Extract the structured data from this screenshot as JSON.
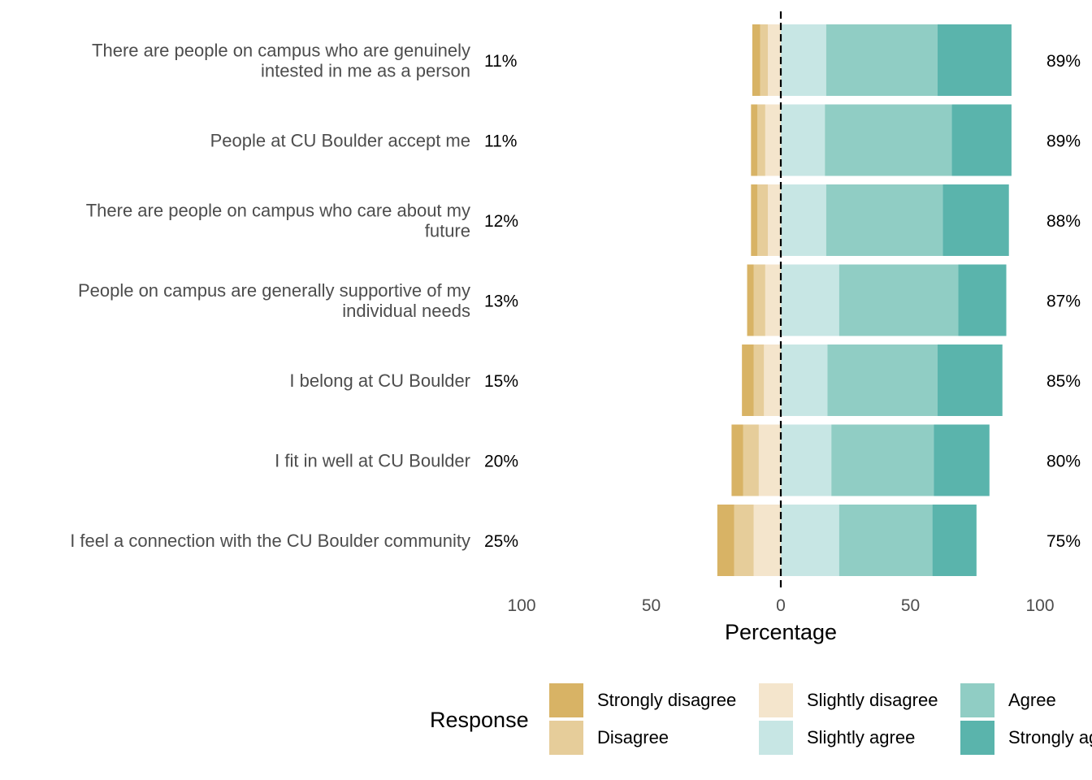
{
  "chart_data": {
    "type": "bar",
    "orientation": "horizontal",
    "stacking": "diverging",
    "xlabel": "Percentage",
    "xlim": [
      -100,
      100
    ],
    "x_ticks": [
      -100,
      -50,
      0,
      50,
      100
    ],
    "x_tick_labels": [
      "100",
      "50",
      "0",
      "50",
      "100"
    ],
    "grid": false,
    "legend_title": "Response",
    "legend_position": "bottom",
    "categories": [
      "There are people on campus who are genuinely intested in me as a person",
      "People at CU Boulder accept me",
      "There are people on campus who care about my future",
      "People on campus are generally supportive of my individual needs",
      "I belong at CU Boulder",
      "I fit in well at CU Boulder",
      "I feel a connection with the CU Boulder community"
    ],
    "category_label_lines": [
      [
        "There are people on campus who are genuinely",
        "intested in me as a person"
      ],
      [
        "People at CU Boulder accept me"
      ],
      [
        "There are people on campus who care about my",
        "future"
      ],
      [
        "People on campus are generally supportive of my",
        "individual needs"
      ],
      [
        "I belong at CU Boulder"
      ],
      [
        "I fit in well at CU Boulder"
      ],
      [
        "I feel a connection with the CU Boulder community"
      ]
    ],
    "left_percent_labels": [
      "11%",
      "11%",
      "12%",
      "13%",
      "15%",
      "20%",
      "25%"
    ],
    "right_percent_labels": [
      "89%",
      "89%",
      "88%",
      "87%",
      "85%",
      "80%",
      "75%"
    ],
    "series": [
      {
        "name": "Strongly disagree",
        "color": "#d8b365",
        "side": "negative",
        "values": [
          3,
          2.5,
          2.5,
          2.5,
          4.5,
          4.5,
          6.5
        ]
      },
      {
        "name": "Disagree",
        "color": "#e6cd9a",
        "side": "negative",
        "values": [
          3,
          3,
          4,
          4.5,
          4,
          6,
          7.5
        ]
      },
      {
        "name": "Slightly disagree",
        "color": "#f4e5cc",
        "side": "negative",
        "values": [
          5,
          6,
          5,
          6,
          6.5,
          8.5,
          10.5
        ]
      },
      {
        "name": "Slightly agree",
        "color": "#c7e6e4",
        "side": "positive",
        "values": [
          17.5,
          17,
          17.5,
          22.5,
          18,
          19.5,
          22.5
        ]
      },
      {
        "name": "Agree",
        "color": "#90cdc4",
        "side": "positive",
        "values": [
          43,
          49,
          45,
          46,
          42.5,
          39.5,
          36
        ]
      },
      {
        "name": "Strongly agree",
        "color": "#5ab4ac",
        "side": "positive",
        "values": [
          28.5,
          23,
          25.5,
          18.5,
          25,
          21.5,
          17
        ]
      }
    ]
  }
}
